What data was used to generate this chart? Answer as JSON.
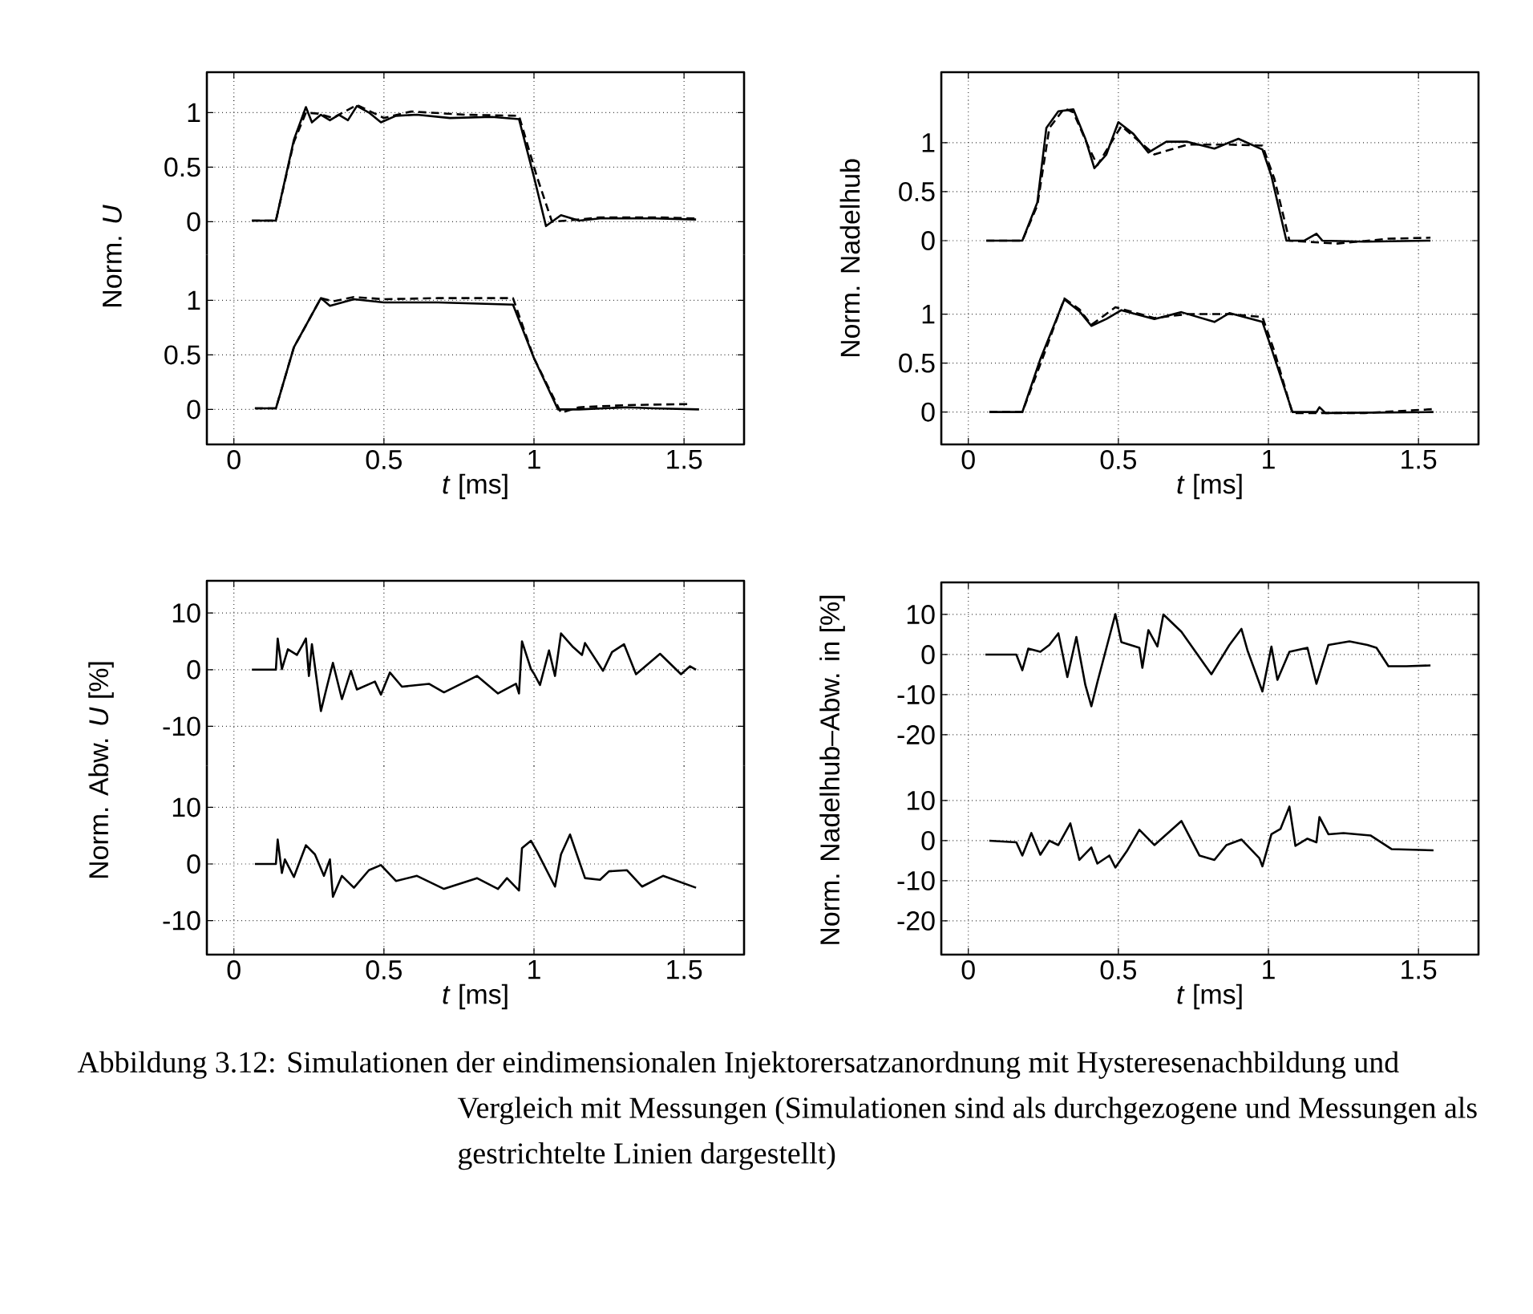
{
  "chart_data": [
    {
      "type": "line",
      "ylabel": "Norm. *U*",
      "xlim": [
        -0.09,
        1.7
      ],
      "xticks": [
        0,
        0.5,
        1,
        1.5
      ],
      "ylim": [
        -0.3,
        1.37
      ],
      "yticks": [
        0,
        0.5,
        1
      ],
      "grid": true,
      "tick_labels": "y",
      "series": [
        {
          "color": "#000000",
          "line_style": "solid",
          "x": [
            0.06,
            0.14,
            0.2,
            0.24,
            0.26,
            0.29,
            0.32,
            0.35,
            0.38,
            0.41,
            0.45,
            0.49,
            0.54,
            0.61,
            0.72,
            0.86,
            0.95,
            1.0,
            1.04,
            1.09,
            1.15,
            1.22,
            1.4,
            1.54
          ],
          "values": [
            0.01,
            0.01,
            0.75,
            1.05,
            0.91,
            0.98,
            0.93,
            0.98,
            0.93,
            1.06,
            1.0,
            0.91,
            0.97,
            0.98,
            0.95,
            0.96,
            0.94,
            0.41,
            -0.04,
            0.06,
            0.01,
            0.03,
            0.03,
            0.02
          ]
        },
        {
          "color": "#000000",
          "line_style": "dashed",
          "x": [
            0.06,
            0.14,
            0.2,
            0.24,
            0.28,
            0.33,
            0.41,
            0.5,
            0.59,
            0.77,
            0.95,
            1.01,
            1.06,
            1.11,
            1.22,
            1.4,
            1.54
          ],
          "values": [
            0.01,
            0.01,
            0.73,
            1.0,
            0.99,
            0.95,
            1.07,
            0.95,
            1.01,
            0.98,
            0.97,
            0.41,
            0.0,
            0.01,
            0.04,
            0.04,
            0.03
          ]
        }
      ]
    },
    {
      "type": "line",
      "xlabel": "*t* [ms]",
      "xlim": [
        -0.09,
        1.7
      ],
      "xticks": [
        0,
        0.5,
        1,
        1.5
      ],
      "ylim": [
        -0.32,
        1.42
      ],
      "yticks": [
        0,
        0.5,
        1
      ],
      "grid": true,
      "series": [
        {
          "color": "#000000",
          "line_style": "solid",
          "x": [
            0.07,
            0.14,
            0.2,
            0.29,
            0.32,
            0.4,
            0.5,
            0.68,
            0.93,
            1.0,
            1.08,
            1.15,
            1.31,
            1.4,
            1.55
          ],
          "values": [
            0.01,
            0.01,
            0.57,
            1.02,
            0.95,
            1.01,
            0.98,
            0.98,
            0.96,
            0.47,
            0.0,
            0.0,
            0.02,
            0.01,
            0.0
          ]
        },
        {
          "color": "#000000",
          "line_style": "dashed",
          "x": [
            0.07,
            0.14,
            0.2,
            0.29,
            0.33,
            0.4,
            0.5,
            0.68,
            0.93,
            1.0,
            1.09,
            1.15,
            1.31,
            1.52
          ],
          "values": [
            0.01,
            0.01,
            0.57,
            1.02,
            0.99,
            1.03,
            1.01,
            1.02,
            1.02,
            0.47,
            -0.03,
            0.02,
            0.04,
            0.05
          ]
        }
      ]
    },
    {
      "type": "line",
      "ylabel": "Norm. Nadelhub",
      "xlim": [
        -0.09,
        1.7
      ],
      "xticks": [
        0,
        0.5,
        1,
        1.5
      ],
      "ylim": [
        -0.45,
        1.72
      ],
      "yticks": [
        0,
        0.5,
        1
      ],
      "grid": true,
      "tick_labels": "y",
      "series": [
        {
          "color": "#000000",
          "line_style": "solid",
          "x": [
            0.06,
            0.18,
            0.23,
            0.26,
            0.3,
            0.35,
            0.39,
            0.42,
            0.46,
            0.5,
            0.55,
            0.6,
            0.66,
            0.73,
            0.82,
            0.9,
            0.98,
            1.01,
            1.06,
            1.12,
            1.16,
            1.18,
            1.32,
            1.54
          ],
          "values": [
            0,
            0,
            0.39,
            1.15,
            1.32,
            1.34,
            1.04,
            0.74,
            0.88,
            1.21,
            1.09,
            0.9,
            1.01,
            1.01,
            0.94,
            1.04,
            0.93,
            0.66,
            0,
            0,
            0.07,
            0,
            -0.01,
            0
          ]
        },
        {
          "color": "#000000",
          "line_style": "dashed",
          "x": [
            0.06,
            0.18,
            0.23,
            0.27,
            0.32,
            0.35,
            0.4,
            0.43,
            0.51,
            0.62,
            0.73,
            0.87,
            0.98,
            1.02,
            1.07,
            1.23,
            1.4,
            1.54
          ],
          "values": [
            0,
            0,
            0.36,
            1.15,
            1.35,
            1.31,
            0.96,
            0.77,
            1.17,
            0.88,
            0.98,
            0.98,
            0.97,
            0.63,
            0,
            -0.03,
            0.02,
            0.03
          ]
        }
      ]
    },
    {
      "type": "line",
      "xlabel": "*t* [ms]",
      "xlim": [
        -0.09,
        1.7
      ],
      "xticks": [
        0,
        0.5,
        1,
        1.5
      ],
      "ylim": [
        -0.33,
        1.3
      ],
      "yticks": [
        0,
        0.5,
        1
      ],
      "grid": true,
      "series": [
        {
          "color": "#000000",
          "line_style": "solid",
          "x": [
            0.07,
            0.18,
            0.24,
            0.32,
            0.37,
            0.41,
            0.46,
            0.51,
            0.62,
            0.71,
            0.82,
            0.87,
            0.98,
            1.01,
            1.08,
            1.16,
            1.17,
            1.19,
            1.55
          ],
          "values": [
            0,
            0,
            0.54,
            1.15,
            1.03,
            0.88,
            0.95,
            1.04,
            0.95,
            1.02,
            0.92,
            1.01,
            0.92,
            0.65,
            0,
            0,
            0.05,
            -0.01,
            0
          ]
        },
        {
          "color": "#000000",
          "line_style": "dashed",
          "x": [
            0.07,
            0.18,
            0.25,
            0.32,
            0.37,
            0.41,
            0.49,
            0.62,
            0.73,
            0.87,
            0.98,
            1.02,
            1.08,
            1.32,
            1.55
          ],
          "values": [
            0,
            0,
            0.57,
            1.16,
            1.05,
            0.89,
            1.07,
            0.96,
            1.0,
            1.0,
            0.97,
            0.62,
            -0.01,
            -0.01,
            0.03
          ]
        }
      ]
    },
    {
      "type": "line",
      "ylabel": "Norm. Abw. *U* [%]",
      "xlim": [
        -0.09,
        1.7
      ],
      "xticks": [
        0,
        0.5,
        1,
        1.5
      ],
      "ylim": [
        -17,
        15.7
      ],
      "yticks": [
        -10,
        0,
        10
      ],
      "grid": true,
      "tick_labels": "y",
      "series": [
        {
          "color": "#000000",
          "line_style": "solid",
          "x": [
            0.06,
            0.14,
            0.146,
            0.16,
            0.18,
            0.21,
            0.23,
            0.24,
            0.25,
            0.26,
            0.29,
            0.31,
            0.33,
            0.36,
            0.39,
            0.41,
            0.47,
            0.49,
            0.52,
            0.56,
            0.65,
            0.7,
            0.81,
            0.88,
            0.94,
            0.95,
            0.96,
            0.99,
            1.0,
            1.02,
            1.05,
            1.07,
            1.09,
            1.13,
            1.16,
            1.17,
            1.23,
            1.26,
            1.3,
            1.34,
            1.42,
            1.49,
            1.52,
            1.54
          ],
          "values": [
            0,
            0,
            5.5,
            0.1,
            3.6,
            2.6,
            4.5,
            5.5,
            -1.1,
            4.5,
            -7.3,
            -3,
            1.2,
            -5.2,
            -0.2,
            -3.5,
            -2.1,
            -4.4,
            -0.5,
            -3,
            -2.5,
            -4,
            -1.1,
            -4.2,
            -2.5,
            -4.2,
            5,
            0.1,
            -0.7,
            -2.7,
            3.4,
            -1.1,
            6.4,
            4,
            2.6,
            4.7,
            -0.2,
            3.1,
            4.5,
            -0.8,
            2.8,
            -0.8,
            0.6,
            0
          ]
        }
      ]
    },
    {
      "type": "line",
      "xlabel": "*t* [ms]",
      "xlim": [
        -0.09,
        1.7
      ],
      "xticks": [
        0,
        0.5,
        1,
        1.5
      ],
      "ylim": [
        -16,
        17.3
      ],
      "yticks": [
        -10,
        0,
        10
      ],
      "grid": true,
      "series": [
        {
          "color": "#000000",
          "line_style": "solid",
          "x": [
            0.07,
            0.14,
            0.146,
            0.16,
            0.17,
            0.2,
            0.24,
            0.27,
            0.3,
            0.32,
            0.33,
            0.36,
            0.4,
            0.45,
            0.49,
            0.54,
            0.61,
            0.7,
            0.81,
            0.88,
            0.91,
            0.95,
            0.96,
            0.99,
            1.01,
            1.07,
            1.09,
            1.12,
            1.17,
            1.22,
            1.25,
            1.31,
            1.36,
            1.43,
            1.54
          ],
          "values": [
            0,
            0,
            4.3,
            -1.6,
            0.8,
            -2.3,
            3.3,
            1.7,
            -2.1,
            0.8,
            -5.8,
            -2.1,
            -4.2,
            -1.1,
            -0.2,
            -3,
            -2.1,
            -4.4,
            -2.5,
            -4.4,
            -2.5,
            -4.7,
            2.8,
            4.1,
            2.2,
            -4,
            1.7,
            5.2,
            -2.5,
            -2.8,
            -1.3,
            -1.1,
            -4,
            -2.1,
            -4.2
          ]
        }
      ]
    },
    {
      "type": "line",
      "ylabel": "Norm. Nadelhub–Abw. in [%]",
      "xlim": [
        -0.09,
        1.7
      ],
      "xticks": [
        0,
        0.5,
        1,
        1.5
      ],
      "ylim": [
        -25,
        18
      ],
      "yticks": [
        -20,
        -10,
        0,
        10
      ],
      "grid": true,
      "tick_labels": "y",
      "series": [
        {
          "color": "#000000",
          "line_style": "solid",
          "x": [
            0.057,
            0.16,
            0.18,
            0.2,
            0.24,
            0.27,
            0.3,
            0.33,
            0.36,
            0.39,
            0.41,
            0.43,
            0.49,
            0.51,
            0.57,
            0.58,
            0.6,
            0.63,
            0.65,
            0.71,
            0.81,
            0.87,
            0.91,
            0.93,
            0.98,
            1.01,
            1.03,
            1.07,
            1.13,
            1.16,
            1.2,
            1.27,
            1.33,
            1.36,
            1.4,
            1.46,
            1.54
          ],
          "values": [
            0,
            0,
            -3.9,
            1.5,
            0.7,
            2.4,
            5.3,
            -5.6,
            4.4,
            -7.6,
            -12.9,
            -6.9,
            10.1,
            3.1,
            1.7,
            -3.3,
            6.1,
            2,
            10,
            5.7,
            -4.9,
            2.4,
            6.4,
            1.1,
            -9.2,
            2,
            -6.3,
            0.7,
            1.7,
            -7.3,
            2.4,
            3.3,
            2.4,
            1.7,
            -2.9,
            -2.9,
            -2.7
          ]
        }
      ]
    },
    {
      "type": "line",
      "xlabel": "*t* [ms]",
      "xlim": [
        -0.09,
        1.7
      ],
      "xticks": [
        0,
        0.5,
        1,
        1.5
      ],
      "ylim": [
        -28.4,
        21.4
      ],
      "yticks": [
        -20,
        -10,
        0,
        10
      ],
      "grid": true,
      "annotations": [
        "Abbildung 3.12: Simulationen der eindimensionalen Injektorersatzanordnung mit Hysteresenachbildung und Vergleich mit Messungen (Simulationen sind als durchgezogene und Messungen als gestrichtelte Linien dargestellt)"
      ],
      "series": [
        {
          "color": "#000000",
          "line_style": "solid",
          "x": [
            0.07,
            0.16,
            0.18,
            0.21,
            0.24,
            0.27,
            0.3,
            0.34,
            0.37,
            0.41,
            0.43,
            0.47,
            0.49,
            0.53,
            0.57,
            0.62,
            0.71,
            0.77,
            0.82,
            0.86,
            0.91,
            0.97,
            0.98,
            1.01,
            1.04,
            1.07,
            1.09,
            1.13,
            1.16,
            1.17,
            1.2,
            1.25,
            1.34,
            1.41,
            1.55
          ],
          "values": [
            0,
            -0.4,
            -3.7,
            1.9,
            -3.5,
            0,
            -1.1,
            4.3,
            -4.8,
            -1.7,
            -5.7,
            -3.7,
            -6.7,
            -2.4,
            2.7,
            -1.1,
            4.9,
            -3.7,
            -4.8,
            -1.1,
            0.3,
            -4.4,
            -6.4,
            1.6,
            2.9,
            8.5,
            -1.3,
            0.5,
            -0.4,
            5.9,
            1.6,
            1.9,
            1.3,
            -2.1,
            -2.4
          ]
        }
      ]
    }
  ]
}
